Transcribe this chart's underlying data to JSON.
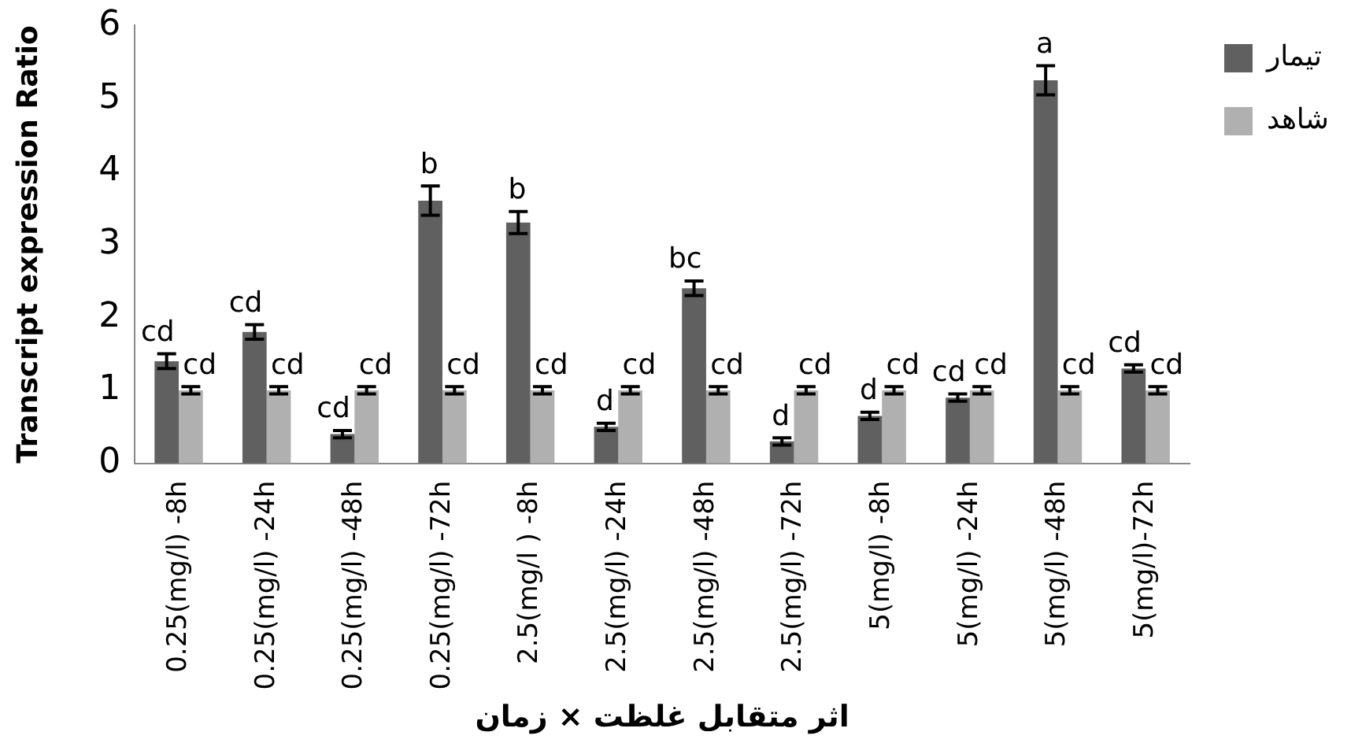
{
  "chart_data": {
    "type": "bar",
    "ylabel": "Transcript expression Ratio",
    "xlabel": "اثر متقابل غلظت × زمان",
    "categories": [
      "0.25(mg/l) -8h",
      "0.25(mg/l) -24h",
      "0.25(mg/l) -48h",
      "0.25(mg/l) -72h",
      "2.5(mg/l ) -8h",
      "2.5(mg/l) -24h",
      "2.5(mg/l) -48h",
      "2.5(mg/l) -72h",
      "5(mg/l) -8h",
      "5(mg/l) -24h",
      "5(mg/l) -48h",
      "5(mg/l)-72h"
    ],
    "series": [
      {
        "name": "تیمار",
        "color": "#606060",
        "values": [
          1.4,
          1.8,
          0.4,
          3.6,
          3.3,
          0.5,
          2.4,
          0.3,
          0.65,
          0.9,
          5.25,
          1.3
        ],
        "errors": [
          0.1,
          0.1,
          0.05,
          0.2,
          0.15,
          0.05,
          0.1,
          0.05,
          0.05,
          0.05,
          0.2,
          0.05
        ],
        "value_labels": [
          "cd",
          "cd",
          "cd",
          "b",
          "b",
          "d",
          "bc",
          "d",
          "d",
          "cd",
          "a",
          "cd"
        ]
      },
      {
        "name": "شاهد",
        "color": "#b0b0b0",
        "values": [
          1,
          1,
          1,
          1,
          1,
          1,
          1,
          1,
          1,
          1,
          1,
          1
        ],
        "errors": [
          0.05,
          0.05,
          0.05,
          0.05,
          0.05,
          0.05,
          0.05,
          0.05,
          0.05,
          0.05,
          0.05,
          0.05
        ],
        "value_labels": [
          "cd",
          "cd",
          "cd",
          "cd",
          "cd",
          "cd",
          "cd",
          "cd",
          "cd",
          "cd",
          "cd",
          "cd"
        ]
      }
    ],
    "ylim": [
      0,
      6
    ],
    "yticks": [
      0,
      1,
      2,
      3,
      4,
      5,
      6
    ],
    "grid": false,
    "legend": "right"
  }
}
